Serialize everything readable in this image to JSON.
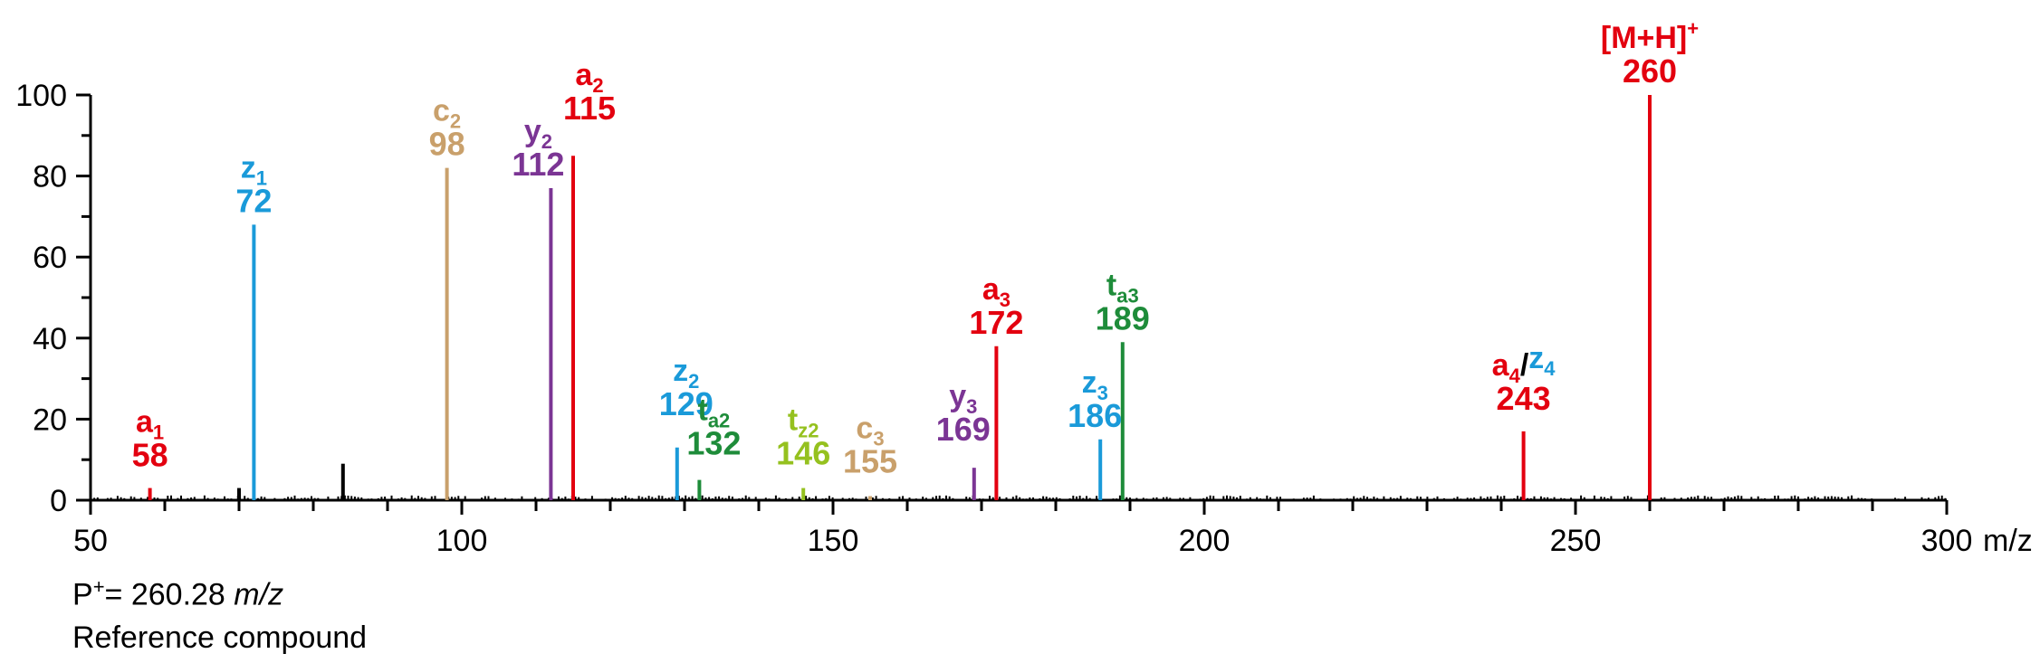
{
  "chart_data": {
    "type": "bar",
    "xlabel": "m/z",
    "xlim": [
      50,
      300
    ],
    "ylim": [
      0,
      100
    ],
    "x_ticks": [
      50,
      100,
      150,
      200,
      250,
      300
    ],
    "y_ticks": [
      0,
      20,
      40,
      60,
      80,
      100
    ],
    "grid": false,
    "colors": {
      "a": "#e3000f",
      "z": "#1a9ad9",
      "c": "#c9a06b",
      "y": "#7b3594",
      "t_a": "#1e8c3a",
      "t_z": "#95c11f",
      "unassigned": "#000000"
    },
    "peaks": [
      {
        "mz": 58,
        "intensity": 3,
        "ion": "a",
        "sub": "1",
        "label": "58",
        "color": "#e3000f"
      },
      {
        "mz": 72,
        "intensity": 68,
        "ion": "z",
        "sub": "1",
        "label": "72",
        "color": "#1a9ad9"
      },
      {
        "mz": 98,
        "intensity": 82,
        "ion": "c",
        "sub": "2",
        "label": "98",
        "color": "#c9a06b"
      },
      {
        "mz": 112,
        "intensity": 77,
        "ion": "y",
        "sub": "2",
        "label": "112",
        "color": "#7b3594"
      },
      {
        "mz": 115,
        "intensity": 85,
        "ion": "a",
        "sub": "2",
        "label": "115",
        "color": "#e3000f"
      },
      {
        "mz": 129,
        "intensity": 13,
        "ion": "z",
        "sub": "2",
        "label": "129",
        "color": "#1a9ad9"
      },
      {
        "mz": 132,
        "intensity": 5,
        "ion": "t",
        "sub": "a2",
        "label": "132",
        "color": "#1e8c3a"
      },
      {
        "mz": 146,
        "intensity": 3,
        "ion": "t",
        "sub": "z2",
        "label": "146",
        "color": "#95c11f"
      },
      {
        "mz": 155,
        "intensity": 1,
        "ion": "c",
        "sub": "3",
        "label": "155",
        "color": "#c9a06b"
      },
      {
        "mz": 169,
        "intensity": 8,
        "ion": "y",
        "sub": "3",
        "label": "169",
        "color": "#7b3594"
      },
      {
        "mz": 172,
        "intensity": 38,
        "ion": "a",
        "sub": "3",
        "label": "172",
        "color": "#e3000f"
      },
      {
        "mz": 186,
        "intensity": 15,
        "ion": "z",
        "sub": "3",
        "label": "186",
        "color": "#1a9ad9"
      },
      {
        "mz": 189,
        "intensity": 39,
        "ion": "t",
        "sub": "a3",
        "label": "189",
        "color": "#1e8c3a"
      },
      {
        "mz": 243,
        "intensity": 17,
        "ion": "a4z4",
        "label": "243",
        "color": "#e3000f"
      },
      {
        "mz": 260,
        "intensity": 100,
        "ion": "[M+H]",
        "sup": "+",
        "label": "260",
        "color": "#e3000f"
      }
    ],
    "unlabeled_peaks": [
      {
        "mz": 70,
        "intensity": 3
      },
      {
        "mz": 84,
        "intensity": 9
      }
    ],
    "baseline_noise": 1.2
  },
  "captions": {
    "precursor_prefix": "P",
    "precursor_sup": "+",
    "precursor_value": "= 260.28 ",
    "precursor_unit": "m/z",
    "compound": "Reference compound"
  }
}
